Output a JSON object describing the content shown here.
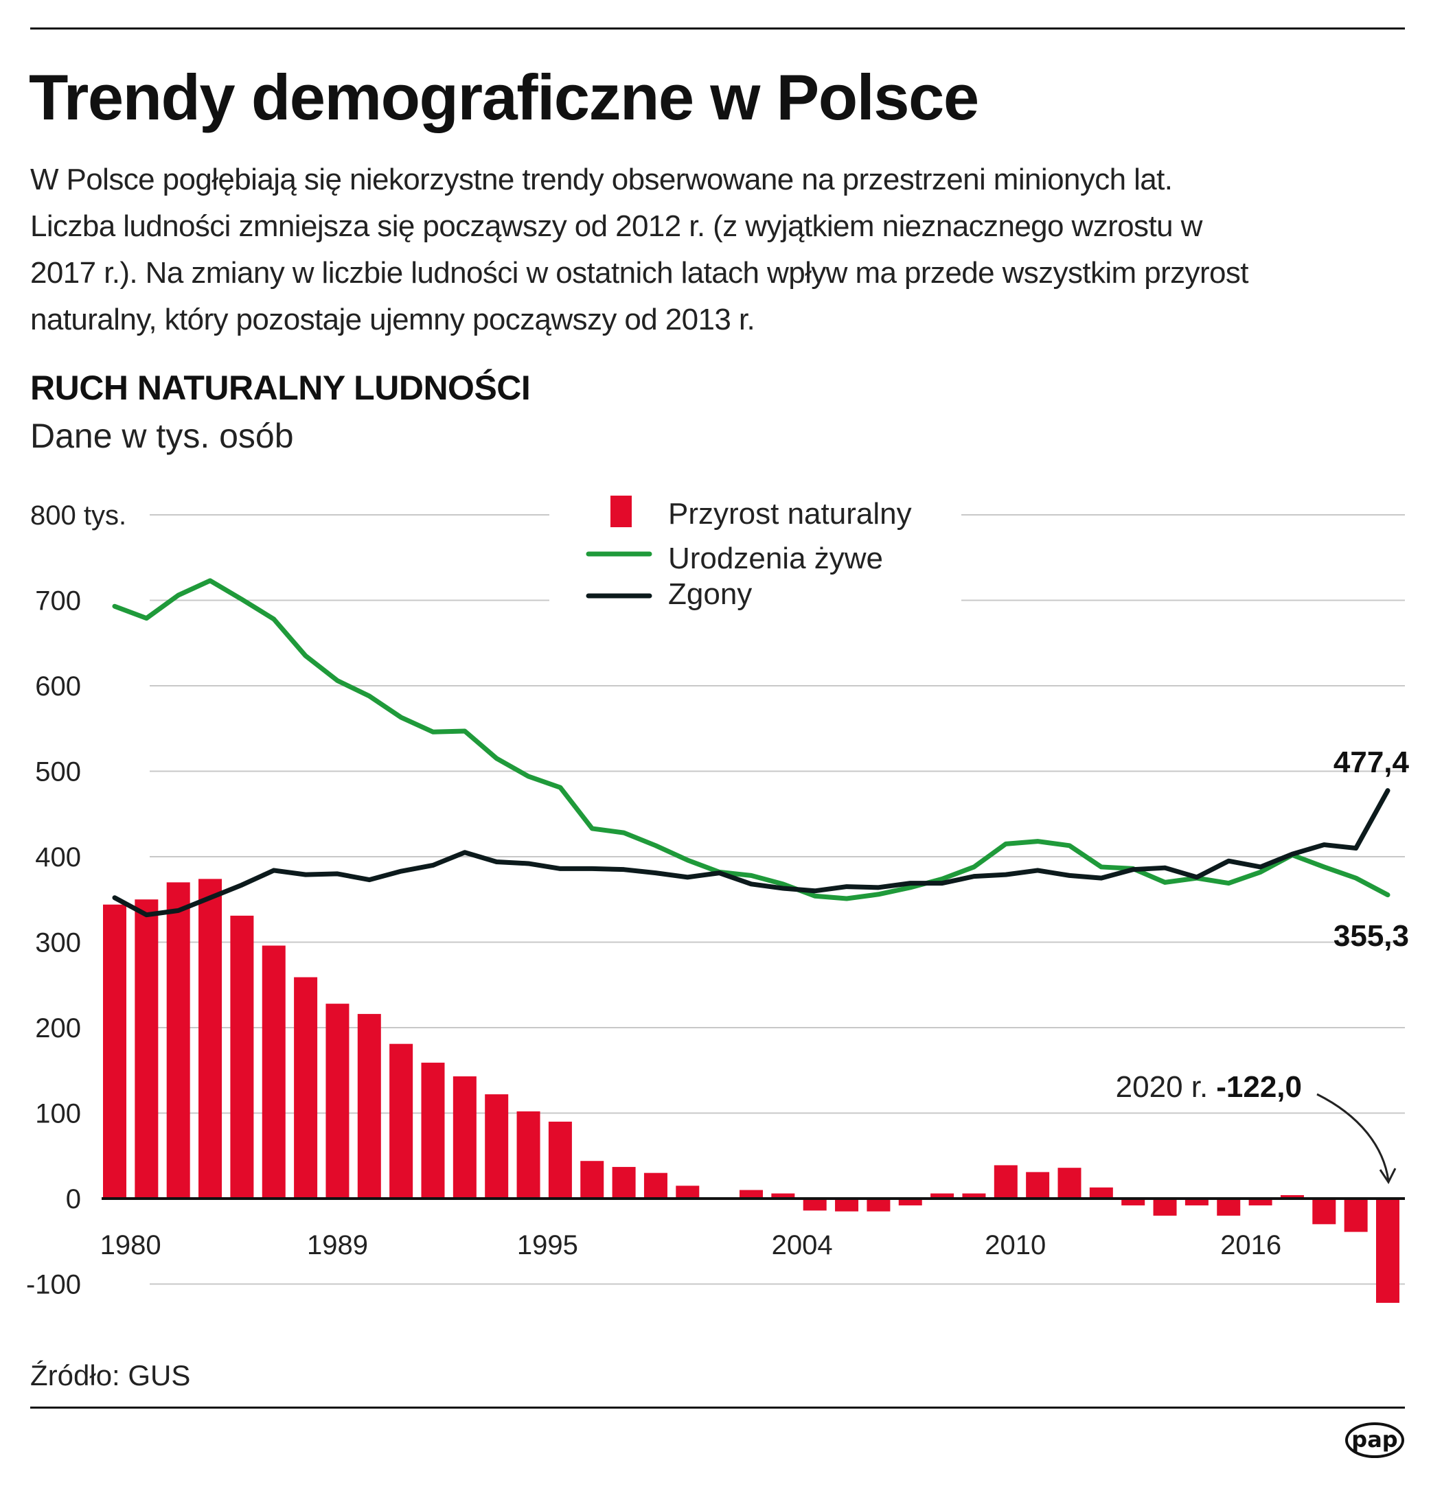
{
  "header": {
    "title": "Trendy demograficzne w Polsce",
    "lead_lines": [
      "W Polsce pogłębiają się niekorzystne trendy obserwowane na przestrzeni minionych lat.",
      "Liczba ludności zmniejsza się począwszy od 2012 r. (z wyjątkiem nieznacznego wzrostu w",
      "2017 r.). Na zmiany w liczbie ludności w ostatnich latach wpływ ma przede wszystkim przyrost",
      "naturalny, który pozostaje ujemny począwszy od 2013 r."
    ]
  },
  "section": {
    "title": "RUCH NATURALNY LUDNOŚCI",
    "subtitle": "Dane w tys. osób"
  },
  "chart_data": {
    "type": "bar+line",
    "ylim": [
      -100,
      800
    ],
    "yticks": [
      "800 tys.",
      "700",
      "600",
      "500",
      "400",
      "300",
      "200",
      "100",
      "0",
      "-100"
    ],
    "ytick_values": [
      800,
      700,
      600,
      500,
      400,
      300,
      200,
      100,
      0,
      -100
    ],
    "xtick_labels": [
      "1980",
      "1989",
      "1995",
      "2004",
      "2010",
      "2016"
    ],
    "grid": true,
    "legend_position": "top-center",
    "years": [
      1980,
      1981,
      1982,
      1983,
      1984,
      1985,
      1986,
      1987,
      1988,
      1989,
      1990,
      1991,
      1992,
      1993,
      1994,
      1995,
      1996,
      1997,
      1998,
      1999,
      2000,
      2001,
      2002,
      2003,
      2004,
      2005,
      2006,
      2007,
      2008,
      2009,
      2010,
      2011,
      2012,
      2013,
      2014,
      2015,
      2016,
      2017,
      2018,
      2019,
      2020
    ],
    "series": [
      {
        "name": "Przyrost naturalny",
        "kind": "bar",
        "color": "#e30a2a",
        "values": [
          344,
          350,
          370,
          374,
          331,
          296,
          259,
          228,
          216,
          181,
          159,
          143,
          122,
          102,
          90,
          44,
          37,
          30,
          15,
          0.6,
          10,
          6,
          -14,
          -15,
          -15,
          -8,
          6,
          6,
          39,
          31,
          36,
          13,
          -8,
          -20,
          -8,
          -20,
          -8,
          4,
          -30,
          -39,
          -122.0
        ]
      },
      {
        "name": "Urodzenia żywe",
        "kind": "line",
        "color": "#1f9a3a",
        "values": [
          693,
          679,
          706,
          723,
          701,
          678,
          635,
          606,
          588,
          563,
          546,
          547,
          515,
          494,
          481,
          433,
          428,
          413,
          396,
          382,
          378,
          368,
          354,
          351,
          356,
          364,
          374,
          388,
          415,
          418,
          413,
          388,
          386,
          370,
          375,
          369,
          382,
          402,
          388,
          375,
          355.3
        ]
      },
      {
        "name": "Zgony",
        "kind": "line",
        "color": "#0c1a1c",
        "values": [
          352,
          332,
          337,
          352,
          367,
          384,
          379,
          380,
          373,
          383,
          390,
          405,
          394,
          392,
          386,
          386,
          385,
          381,
          376,
          381,
          368,
          363,
          360,
          365,
          364,
          369,
          369,
          377,
          379,
          384,
          378,
          375,
          385,
          387,
          376,
          395,
          388,
          403,
          414,
          410,
          477.4
        ]
      }
    ],
    "annotations": {
      "deaths_last": "477,4",
      "births_last": "355,3",
      "increase_last_prefix": "2020 r.",
      "increase_last_value": "-122,0"
    }
  },
  "footer": {
    "source": "Źródło: GUS",
    "logo_text": "pap"
  }
}
